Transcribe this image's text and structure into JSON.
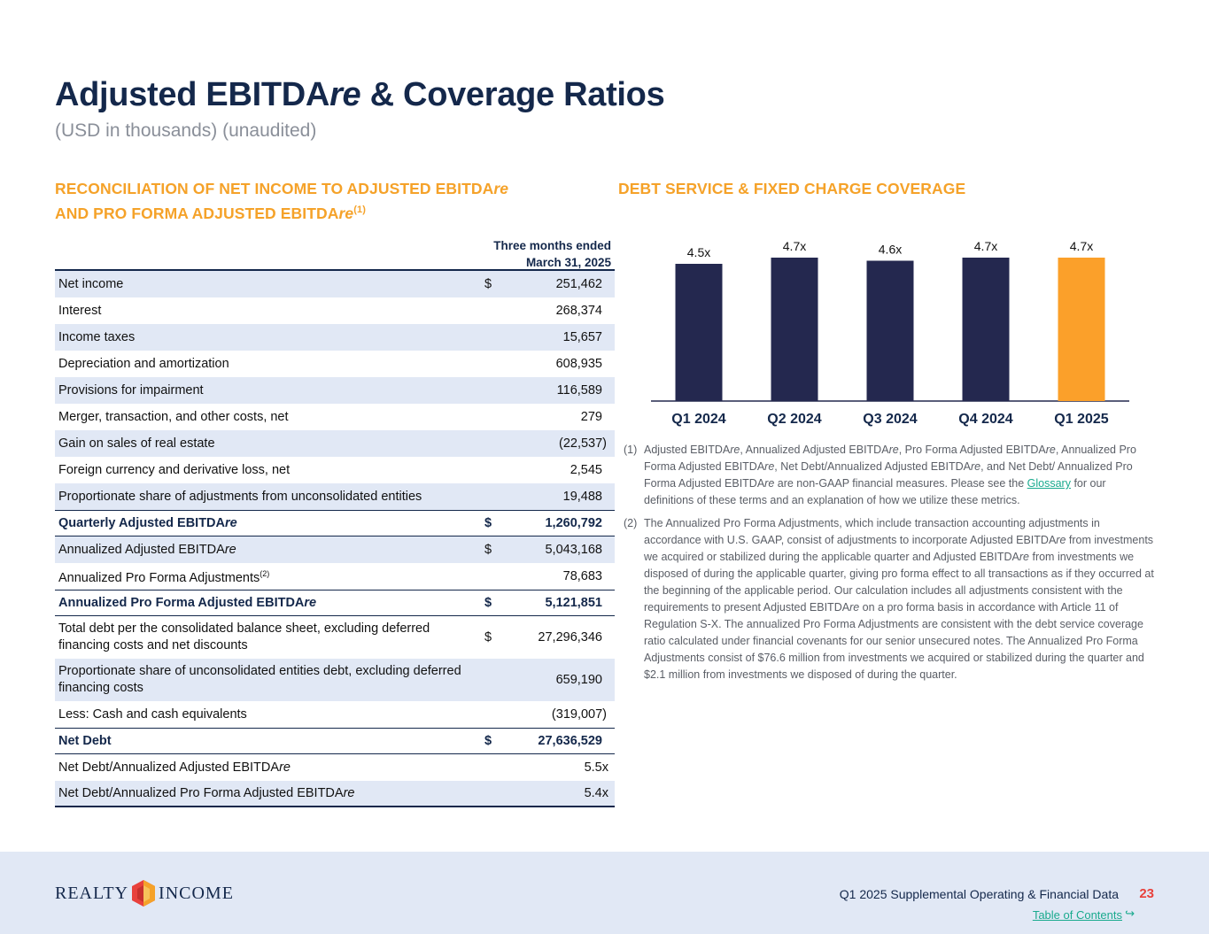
{
  "title_part1": "Adjusted EBITDA",
  "title_italic": "re",
  "title_part2": " & Coverage Ratios",
  "subtitle": "(USD in thousands) (unaudited)",
  "left_section": {
    "line1_a": "RECONCILIATION OF NET INCOME TO ADJUSTED EBITDA",
    "line1_b": "re",
    "line2_a": "AND PRO FORMA ADJUSTED EBITDA",
    "line2_b": "re",
    "line2_sup": "(1)"
  },
  "right_section_title": "DEBT SERVICE & FIXED CHARGE COVERAGE",
  "table": {
    "header_line1": "Three months ended",
    "header_line2": "March 31, 2025",
    "rows": [
      {
        "label": "Net income",
        "currency": "$",
        "value": "251,462"
      },
      {
        "label": "Interest",
        "currency": "",
        "value": "268,374"
      },
      {
        "label": "Income taxes",
        "currency": "",
        "value": "15,657"
      },
      {
        "label": "Depreciation and amortization",
        "currency": "",
        "value": "608,935"
      },
      {
        "label": "Provisions for impairment",
        "currency": "",
        "value": "116,589"
      },
      {
        "label": "Merger, transaction, and other costs, net",
        "currency": "",
        "value": "279"
      },
      {
        "label": "Gain on sales of real estate",
        "currency": "",
        "value": "(22,537)"
      },
      {
        "label": "Foreign currency and derivative loss, net",
        "currency": "",
        "value": "2,545"
      },
      {
        "label": "Proportionate share of adjustments from unconsolidated entities",
        "currency": "",
        "value": "19,488"
      },
      {
        "label_a": "Quarterly Adjusted EBITDA",
        "label_b": "re",
        "currency": "$",
        "value": "1,260,792"
      },
      {
        "label_a": "Annualized Adjusted EBITDA",
        "label_b": "re",
        "currency": "$",
        "value": "5,043,168"
      },
      {
        "label": "Annualized Pro Forma Adjustments",
        "sup": "(2)",
        "currency": "",
        "value": "78,683"
      },
      {
        "label_a": "Annualized Pro Forma Adjusted EBITDA",
        "label_b": "re",
        "currency": "$",
        "value": "5,121,851"
      },
      {
        "label": "Total debt per the consolidated balance sheet, excluding deferred financing costs and net discounts",
        "currency": "$",
        "value": "27,296,346"
      },
      {
        "label": "Proportionate share of unconsolidated entities debt, excluding deferred financing costs",
        "currency": "",
        "value": "659,190"
      },
      {
        "label": "Less: Cash and cash equivalents",
        "currency": "",
        "value": "(319,007)"
      },
      {
        "label": "Net Debt",
        "currency": "$",
        "value": "27,636,529"
      },
      {
        "label_a": "Net Debt/Annualized Adjusted EBITDA",
        "label_b": "re",
        "currency": "",
        "value": "5.5x"
      },
      {
        "label_a": "Net Debt/Annualized Pro Forma Adjusted EBITDA",
        "label_b": "re",
        "currency": "",
        "value": "5.4x"
      }
    ]
  },
  "chart_data": {
    "type": "bar",
    "categories": [
      "Q1 2024",
      "Q2 2024",
      "Q3 2024",
      "Q4 2024",
      "Q1 2025"
    ],
    "values": [
      4.5,
      4.7,
      4.6,
      4.7,
      4.7
    ],
    "data_labels": [
      "4.5x",
      "4.7x",
      "4.6x",
      "4.7x",
      "4.7x"
    ],
    "colors": [
      "#24284f",
      "#24284f",
      "#24284f",
      "#24284f",
      "#fba02a"
    ],
    "title": "",
    "xlabel": "",
    "ylabel": ""
  },
  "footnotes": {
    "fn1": {
      "num": "(1)",
      "t1": "Adjusted EBITDA",
      "t2": "re",
      "t3": ", Annualized Adjusted EBITDA",
      "t4": "re",
      "t5": ", Pro Forma Adjusted EBITDA",
      "t6": "re",
      "t7": ", Annualized Pro Forma Adjusted EBITDA",
      "t8": "re",
      "t9": ", Net Debt/Annualized Adjusted EBITDA",
      "t10": "re",
      "t11": ", and Net Debt/ Annualized Pro Forma Adjusted EBITDA",
      "t12": "re",
      "t13": " are non-GAAP financial measures. Please see the ",
      "link": "Glossary",
      "t14": " for our definitions of these terms and an explanation of how we utilize these metrics."
    },
    "fn2": {
      "num": "(2)",
      "t1": "The Annualized Pro Forma Adjustments, which include transaction accounting adjustments in accordance with U.S. GAAP, consist of adjustments to incorporate Adjusted EBITDA",
      "t2": "re",
      "t3": " from investments we acquired or stabilized during the applicable quarter and Adjusted EBITDA",
      "t4": "re",
      "t5": " from investments we disposed of during the applicable quarter, giving pro forma effect to all transactions as if they occurred at the beginning of the applicable period. Our calculation includes all adjustments consistent with the requirements to present Adjusted EBITDA",
      "t6": "re",
      "t7": " on a pro forma basis in accordance with Article 11 of Regulation S-X. The annualized Pro Forma Adjustments are consistent with the debt service coverage ratio calculated under financial covenants for our senior unsecured notes. The Annualized Pro Forma Adjustments consist of $76.6 million from investments we acquired or stabilized during the quarter and $2.1 million from investments we disposed of during the quarter."
    }
  },
  "footer": {
    "logo_left": "REALTY",
    "logo_right": "INCOME",
    "doc_title": "Q1 2025 Supplemental Operating & Financial Data",
    "page_number": "23",
    "toc_link": "Table of Contents",
    "toc_arrow": "↪"
  }
}
